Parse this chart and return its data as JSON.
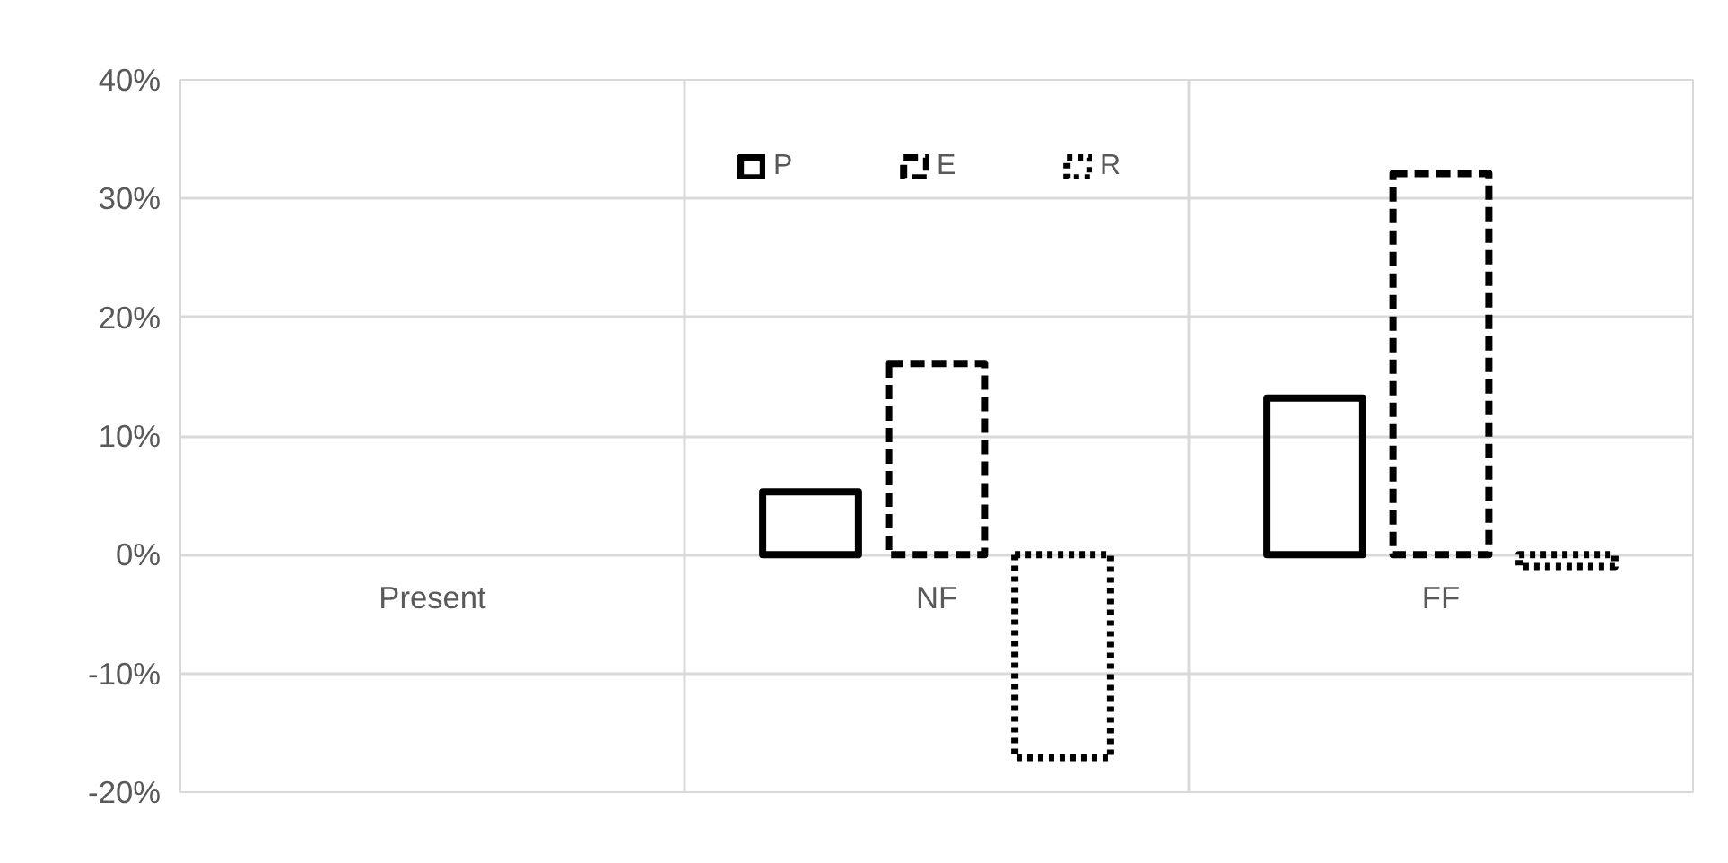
{
  "chart_data": {
    "type": "bar",
    "categories": [
      "Present",
      "NF",
      "FF"
    ],
    "series": [
      {
        "name": "P",
        "color": "#000000",
        "line_style": "solid",
        "values": [
          null,
          5.3,
          13.2
        ]
      },
      {
        "name": "E",
        "color": "#000000",
        "line_style": "dashed",
        "values": [
          null,
          16.1,
          32.1
        ]
      },
      {
        "name": "R",
        "color": "#000000",
        "line_style": "dotted",
        "values": [
          null,
          -17.1,
          -1.0
        ]
      }
    ],
    "ylim": [
      -20,
      40
    ],
    "yticks": [
      {
        "value": -20,
        "label": "-20%"
      },
      {
        "value": -10,
        "label": "-10%"
      },
      {
        "value": 0,
        "label": "0%"
      },
      {
        "value": 10,
        "label": "10%"
      },
      {
        "value": 20,
        "label": "20%"
      },
      {
        "value": 30,
        "label": "30%"
      },
      {
        "value": 40,
        "label": "40%"
      }
    ],
    "grid": true,
    "legend": "top"
  }
}
